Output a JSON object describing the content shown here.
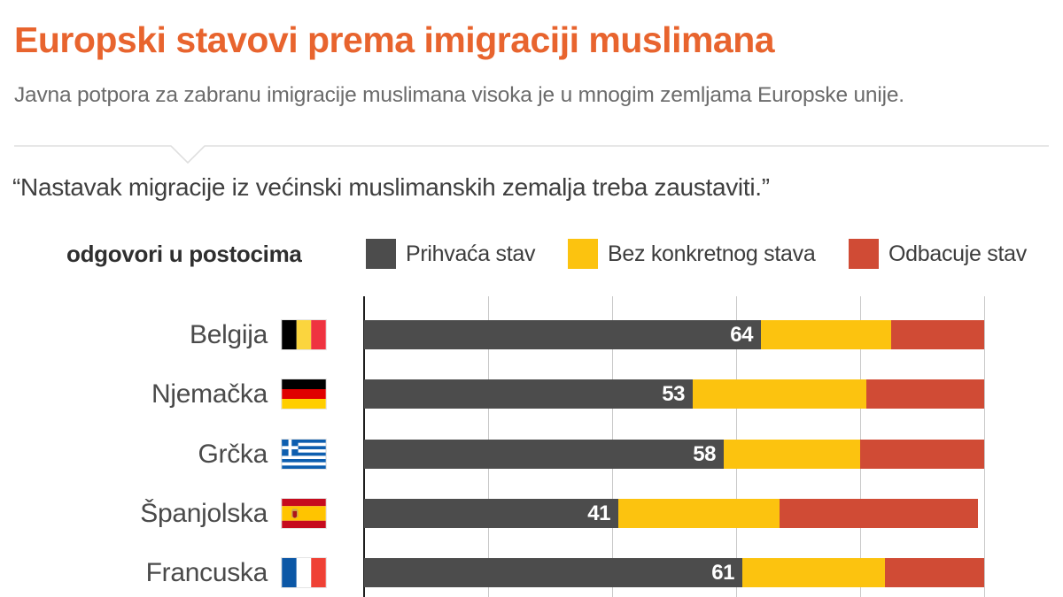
{
  "header": {
    "title": "Europski stavovi prema imigraciji muslimana",
    "subtitle": "Javna potpora za zabranu imigracije muslimana visoka je u mnogim zemljama Europske unije."
  },
  "quote": "“Nastavak migracije iz većinski muslimanskih zemalja treba zaustaviti.”",
  "legend": {
    "caption": "odgovori u postocima",
    "items": [
      {
        "label": "Prihvaća stav",
        "color": "#4C4C4C"
      },
      {
        "label": "Bez konkretnog stava",
        "color": "#FCC30F"
      },
      {
        "label": "Odbacuje stav",
        "color": "#D04B35"
      }
    ]
  },
  "chart_data": {
    "type": "bar",
    "orientation": "horizontal",
    "stacked": true,
    "units": "percent",
    "categories": [
      "Belgija",
      "Njemačka",
      "Grčka",
      "Španjolska",
      "Francuska"
    ],
    "category_flags": [
      "be",
      "de",
      "gr",
      "es",
      "fr"
    ],
    "series": [
      {
        "name": "Prihvaća stav",
        "color": "#4C4C4C",
        "values": [
          64,
          53,
          58,
          41,
          61
        ]
      },
      {
        "name": "Bez konkretnog stava",
        "color": "#FCC30F",
        "values": [
          21,
          28,
          22,
          26,
          23
        ]
      },
      {
        "name": "Odbacuje stav",
        "color": "#D04B35",
        "values": [
          15,
          19,
          20,
          32,
          16
        ]
      }
    ],
    "value_labels": {
      "series": "Prihvaća stav",
      "values": [
        "64",
        "53",
        "58",
        "41",
        "61"
      ]
    },
    "xlim": [
      0,
      100
    ],
    "gridline_interval": 20,
    "grid": true,
    "legend_position": "top"
  },
  "colors": {
    "title": "#E8642E",
    "subtitle": "#6B6B6B",
    "quote": "#3F3F3F",
    "axis": "#1E1E1E",
    "gridline": "#C9C9C9",
    "value_label": "#FFFFFF"
  }
}
